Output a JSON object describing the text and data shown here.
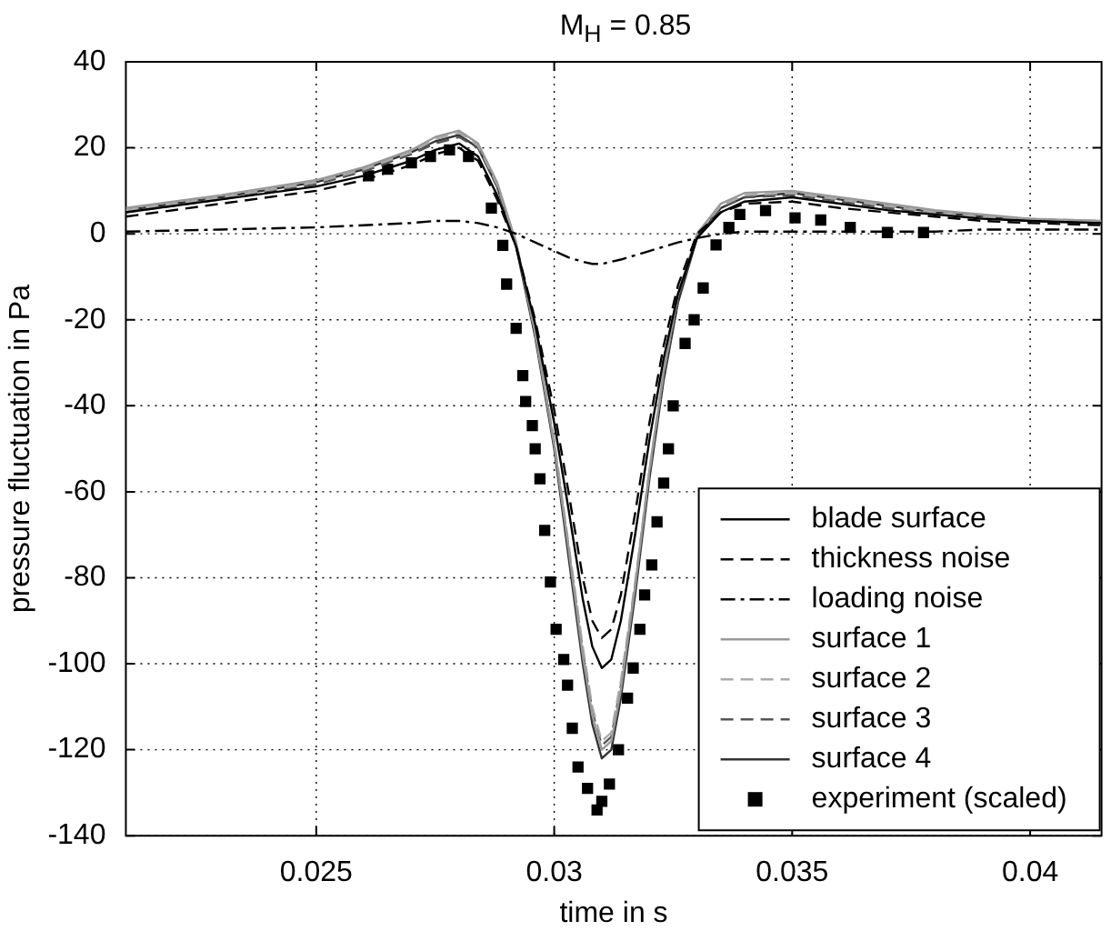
{
  "chart_data": {
    "type": "line",
    "title": "M$_{H}$ = 0.85",
    "xlabel": "time in s",
    "ylabel": "pressure fluctuation in Pa",
    "xlim": [
      0.021,
      0.0415
    ],
    "xticks": [
      0.025,
      0.03,
      0.035,
      0.04
    ],
    "ylim": [
      -140,
      40
    ],
    "yticks": [
      -140,
      -120,
      -100,
      -80,
      -60,
      -40,
      -20,
      0,
      20,
      40
    ],
    "grid": true,
    "legend": "bottom right",
    "marker": "none",
    "x": [
      0.021,
      0.023,
      0.025,
      0.026,
      0.027,
      0.0275,
      0.028,
      0.0284,
      0.0288,
      0.0292,
      0.0296,
      0.03,
      0.0303,
      0.0306,
      0.0308,
      0.031,
      0.0312,
      0.0314,
      0.0317,
      0.032,
      0.0323,
      0.0326,
      0.033,
      0.0335,
      0.034,
      0.035,
      0.036,
      0.037,
      0.038,
      0.039,
      0.04,
      0.0415
    ],
    "series": [
      {
        "name": "blade surface",
        "color": "#000000",
        "line_style": "solid",
        "values": [
          5,
          8,
          11,
          13.5,
          17,
          19.5,
          21,
          18,
          9,
          -3,
          -21,
          -44,
          -64,
          -85,
          -96,
          -101,
          -99,
          -90,
          -70,
          -48,
          -29,
          -14,
          -1,
          5,
          7.5,
          8.5,
          7,
          5.5,
          4.5,
          3.5,
          3,
          2.5
        ]
      },
      {
        "name": "thickness noise",
        "color": "#000000",
        "line_style": "dashed",
        "values": [
          4,
          7,
          10,
          12.5,
          16,
          18.5,
          20,
          17,
          8,
          -3,
          -20,
          -41,
          -60,
          -80,
          -90,
          -94,
          -92,
          -84,
          -65,
          -44,
          -26,
          -12,
          0,
          5,
          7,
          7.5,
          6,
          5,
          4,
          3,
          2.5,
          2
        ]
      },
      {
        "name": "loading noise",
        "color": "#000000",
        "line_style": "dashdot",
        "values": [
          0.5,
          1,
          1.5,
          2,
          2.5,
          3,
          3,
          2.5,
          1.5,
          0,
          -2,
          -4,
          -5.5,
          -6.5,
          -7,
          -7,
          -6.5,
          -6,
          -5,
          -4,
          -3,
          -2,
          -1,
          0,
          0.5,
          0.5,
          0.5,
          0.5,
          0.5,
          1,
          1,
          1
        ]
      },
      {
        "name": "surface 1",
        "color": "#999999",
        "line_style": "solid",
        "values": [
          6,
          9,
          12.5,
          15.5,
          19.5,
          22.5,
          24,
          21,
          12,
          -2,
          -23,
          -49,
          -73,
          -98,
          -112,
          -120,
          -118,
          -106,
          -82,
          -55,
          -32,
          -14,
          0,
          7,
          9.5,
          10,
          8.5,
          7,
          5.5,
          4.5,
          3.5,
          3
        ]
      },
      {
        "name": "surface 2",
        "color": "#aaaaaa",
        "line_style": "dashed",
        "values": [
          5.5,
          8.5,
          12,
          15,
          19,
          22,
          23.5,
          20.5,
          11.5,
          -2,
          -23,
          -48,
          -72,
          -96,
          -110,
          -118,
          -116,
          -104,
          -81,
          -55,
          -32,
          -14,
          0,
          6.5,
          9,
          9.5,
          8,
          6.5,
          5,
          4,
          3.5,
          3
        ]
      },
      {
        "name": "surface 3",
        "color": "#555555",
        "line_style": "dashed",
        "values": [
          5,
          8,
          11.5,
          14.5,
          18.5,
          21,
          22.5,
          20,
          11,
          -2.5,
          -23,
          -49,
          -73,
          -97,
          -111,
          -119,
          -117,
          -105,
          -82,
          -56,
          -33,
          -15,
          -0.5,
          6,
          8.5,
          9,
          7.5,
          6,
          5,
          4,
          3,
          2.5
        ]
      },
      {
        "name": "surface 4",
        "color": "#333333",
        "line_style": "solid",
        "values": [
          5.5,
          8.5,
          12,
          15,
          19,
          21.5,
          23,
          20,
          11,
          -3,
          -24,
          -50,
          -75,
          -100,
          -114,
          -122,
          -120,
          -108,
          -84,
          -57,
          -34,
          -16,
          -1,
          6,
          8.5,
          9.5,
          8,
          6.5,
          5,
          4,
          3,
          2.5
        ]
      },
      {
        "name": "experiment (scaled)",
        "type": "scatter",
        "marker": "square",
        "color": "#000000",
        "x": [
          0.0261,
          0.0265,
          0.027,
          0.0274,
          0.0278,
          0.0282,
          0.02868,
          0.02892,
          0.029,
          0.0292,
          0.02934,
          0.0294,
          0.02954,
          0.0296,
          0.0297,
          0.0298,
          0.02992,
          0.03004,
          0.0302,
          0.03028,
          0.03038,
          0.0305,
          0.0307,
          0.0309,
          0.031,
          0.03116,
          0.03135,
          0.03154,
          0.03166,
          0.0318,
          0.0319,
          0.03205,
          0.03216,
          0.0323,
          0.0324,
          0.0325,
          0.03275,
          0.03294,
          0.03313,
          0.0334,
          0.03367,
          0.0339,
          0.03444,
          0.03506,
          0.0356,
          0.03622,
          0.037,
          0.03776
        ],
        "values": [
          13.5,
          15,
          16.5,
          18,
          19.5,
          18,
          6,
          -2.7,
          -11.7,
          -22,
          -33,
          -39,
          -44.6,
          -50,
          -57,
          -69,
          -81,
          -92,
          -99,
          -105,
          -115,
          -124,
          -129,
          -134,
          -132,
          -128,
          -120,
          -108,
          -101,
          -92,
          -84,
          -77,
          -67,
          -58,
          -50,
          -40,
          -25.5,
          -20,
          -12.6,
          -2.6,
          1.5,
          4.5,
          5.4,
          3.7,
          3.2,
          1.5,
          0.3,
          0.3
        ]
      }
    ]
  }
}
